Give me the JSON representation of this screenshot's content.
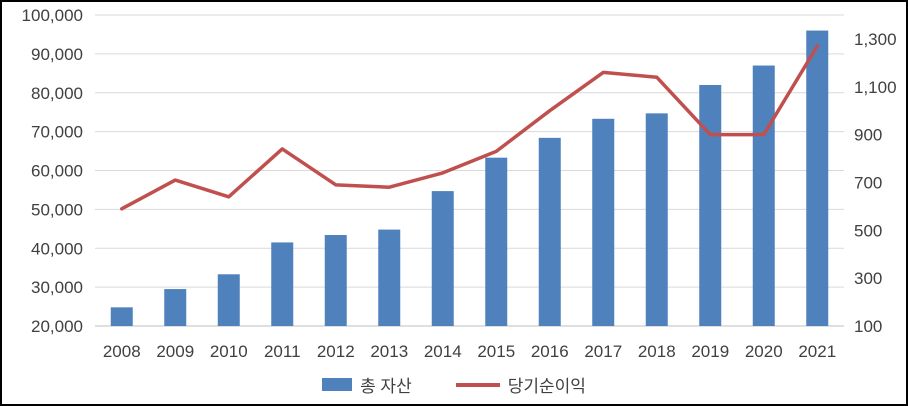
{
  "chart_data": {
    "type": "combo",
    "categories": [
      "2008",
      "2009",
      "2010",
      "2011",
      "2012",
      "2013",
      "2014",
      "2015",
      "2016",
      "2017",
      "2018",
      "2019",
      "2020",
      "2021"
    ],
    "series": [
      {
        "name": "총 자산",
        "type": "bar",
        "axis": "left",
        "color": "#4F81BD",
        "values": [
          24800,
          29500,
          33300,
          41500,
          43400,
          44800,
          54700,
          63300,
          68400,
          73300,
          74700,
          82000,
          87000,
          96000
        ]
      },
      {
        "name": "당기순이익",
        "type": "line",
        "axis": "right",
        "color": "#C0504D",
        "values": [
          590,
          710,
          640,
          840,
          690,
          680,
          740,
          830,
          1000,
          1160,
          1140,
          900,
          900,
          1270
        ]
      }
    ],
    "left_axis": {
      "min": 20000,
      "max": 100000,
      "tick_labels": [
        "20,000",
        "30,000",
        "40,000",
        "50,000",
        "60,000",
        "70,000",
        "80,000",
        "90,000",
        "100,000"
      ]
    },
    "right_axis": {
      "min": 100,
      "max": 1400,
      "tick_labels": [
        "100",
        "300",
        "500",
        "700",
        "900",
        "1,100",
        "1,300"
      ]
    },
    "grid": true,
    "legend_position": "bottom"
  },
  "colors": {
    "bar": "#4F81BD",
    "line": "#C0504D",
    "gridline": "#D9D9D9",
    "axis_line": "#BFBFBF",
    "text": "#404040"
  }
}
